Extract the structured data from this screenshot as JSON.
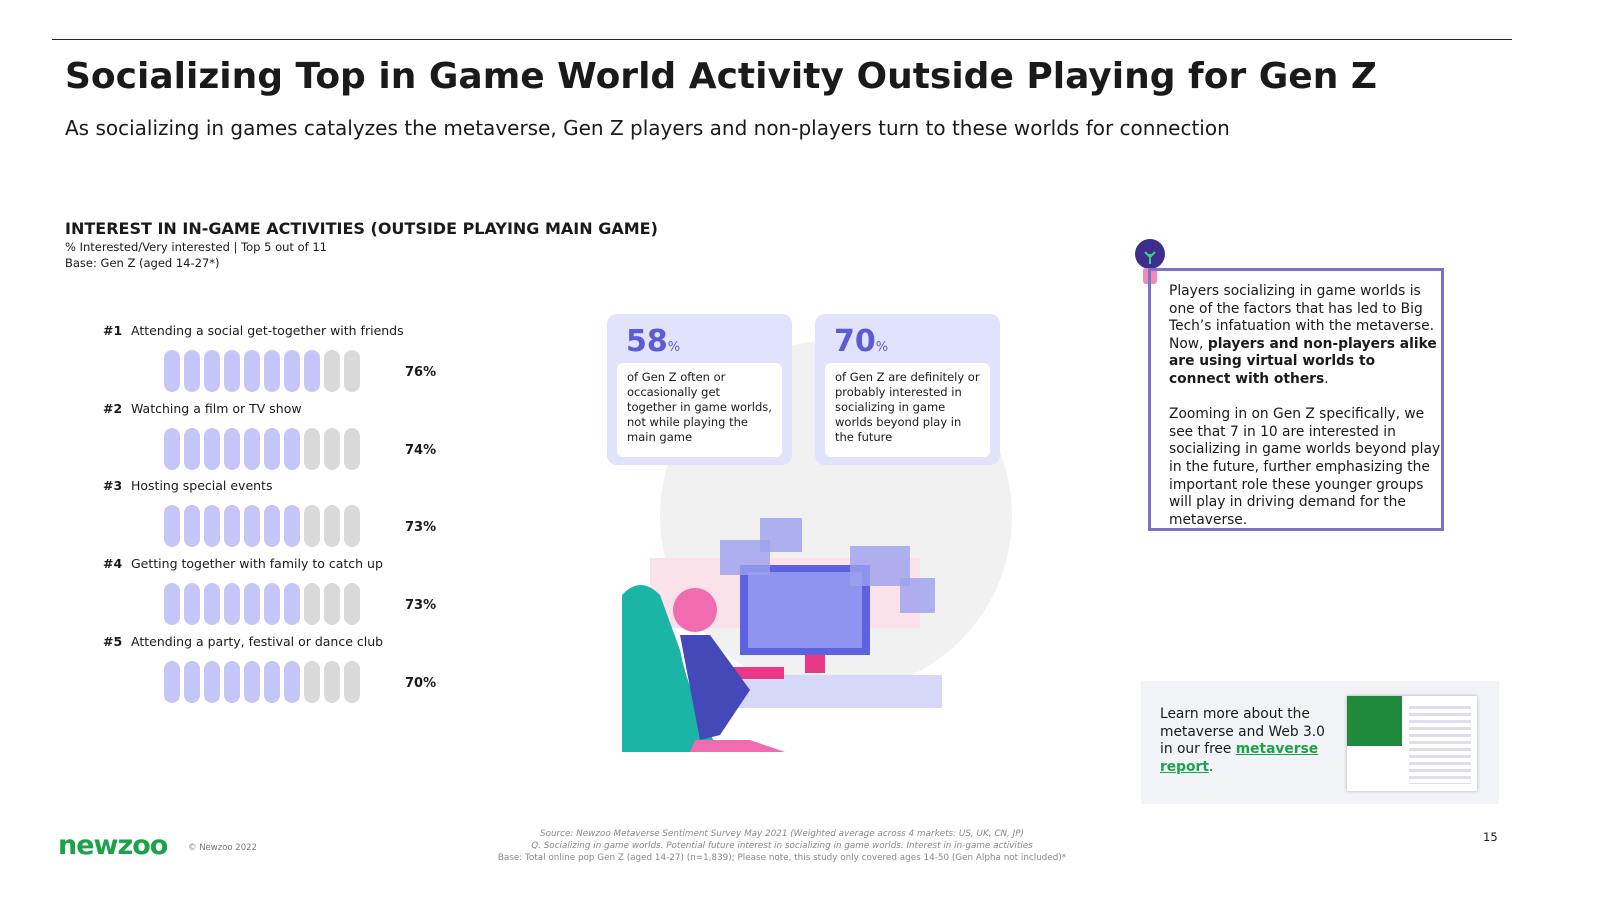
{
  "header": {
    "title": "Socializing Top in Game World Activity Outside Playing for Gen Z",
    "subtitle": "As socializing in games catalyzes the metaverse, Gen Z players and non-players turn to these worlds for connection"
  },
  "chart_data": {
    "type": "pictogram",
    "title": "INTEREST IN IN-GAME ACTIVITIES (OUTSIDE PLAYING MAIN GAME)",
    "subtitle_lines": [
      "% Interested/Very interested | Top 5 out of 11",
      "Base: Gen Z (aged 14-27*)"
    ],
    "ranks": [
      "#1",
      "#2",
      "#3",
      "#4",
      "#5"
    ],
    "categories": [
      "Attending a social get-together with friends",
      "Watching a film or TV show",
      "Hosting special events",
      "Getting together with family to catch up",
      "Attending a party, festival or dance club"
    ],
    "values": [
      76,
      74,
      73,
      73,
      70
    ],
    "value_labels": [
      "76%",
      "74%",
      "73%",
      "73%",
      "70%"
    ],
    "icon_count": 10,
    "color": "#c4c6f7",
    "empty_color": "#d9d9d9"
  },
  "stats": [
    {
      "number": "58",
      "unit": "%",
      "text": "of Gen Z often or occasionally get together in game worlds, not while playing the main game"
    },
    {
      "number": "70",
      "unit": "%",
      "text": "of Gen Z are definitely or probably interested in socializing in game worlds beyond play in the future"
    }
  ],
  "sidebar": {
    "paragraphs": [
      [
        {
          "text": "Players socializing in game worlds is one of the factors that has led to Big Tech’s infatuation with the metaverse. Now, ",
          "bold": false
        },
        {
          "text": "players and non-players alike are using virtual worlds to connect with others",
          "bold": true
        },
        {
          "text": ".",
          "bold": false
        }
      ],
      [
        {
          "text": "Zooming in on Gen Z specifically, we see that 7 in 10 are interested in socializing in game worlds beyond play in the future, further emphasizing the important role these younger groups will play in driving demand for the metaverse.",
          "bold": false
        }
      ]
    ]
  },
  "promo": {
    "text": "Learn more about the metaverse and Web 3.0 in our free ",
    "link": "metaverse report",
    "end": "."
  },
  "footer": {
    "logo": "newzoo",
    "copyright": "© Newzoo 2022",
    "source_lines": [
      "Source: Newzoo Metaverse Sentiment Survey May 2021 (Weighted average across 4 markets: US, UK, CN, JP)",
      "Q. Socializing in game worlds. Potential future interest in socializing in game worlds. Interest in in-game activities",
      "Base: Total online pop Gen Z (aged 14-27) (n=1,839); Please note, this study only covered ages 14-50 (Gen Alpha not included)*"
    ],
    "page": "15"
  }
}
